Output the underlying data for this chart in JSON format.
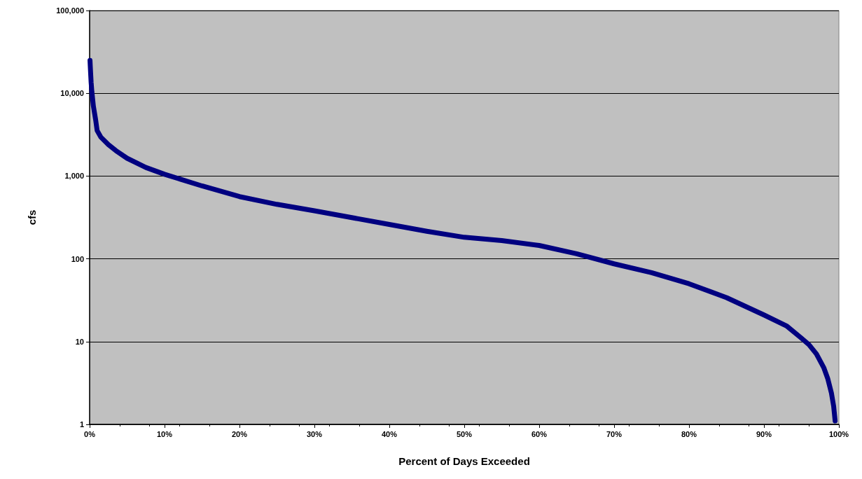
{
  "chart_data": {
    "type": "line",
    "xlabel": "Percent of Days Exceeded",
    "ylabel": "cfs",
    "x": [
      0.05,
      0.1,
      0.2,
      0.3,
      0.5,
      0.8,
      1,
      1.5,
      2.5,
      3.5,
      5,
      7.5,
      10,
      15,
      20,
      25,
      30,
      35,
      40,
      45,
      50,
      55,
      60,
      65,
      70,
      75,
      80,
      85,
      90,
      93,
      95,
      96,
      97,
      98,
      98.5,
      99,
      99.3,
      99.5
    ],
    "series": [
      {
        "color": "#000080",
        "values": [
          25000,
          20000,
          13500,
          10400,
          7000,
          4800,
          3550,
          2950,
          2400,
          2030,
          1640,
          1270,
          1050,
          760,
          565,
          455,
          380,
          315,
          260,
          215,
          182,
          166,
          145,
          115,
          87,
          68,
          50,
          34,
          21,
          15.5,
          11,
          9.2,
          7.1,
          4.8,
          3.6,
          2.4,
          1.66,
          1.1
        ]
      }
    ],
    "xlim": [
      0,
      100
    ],
    "xticks": [
      {
        "value": 0,
        "label": "0%"
      },
      {
        "value": 10,
        "label": "10%"
      },
      {
        "value": 20,
        "label": "20%"
      },
      {
        "value": 30,
        "label": "30%"
      },
      {
        "value": 40,
        "label": "40%"
      },
      {
        "value": 50,
        "label": "50%"
      },
      {
        "value": 60,
        "label": "60%"
      },
      {
        "value": 70,
        "label": "70%"
      },
      {
        "value": 80,
        "label": "80%"
      },
      {
        "value": 90,
        "label": "90%"
      },
      {
        "value": 100,
        "label": "100%"
      }
    ],
    "ylim": [
      1,
      100000
    ],
    "yticks": [
      1,
      10,
      100,
      {
        "value": 1000,
        "label": "1,000"
      },
      {
        "value": 10000,
        "label": "10,000"
      },
      {
        "value": 100000,
        "label": "100,000"
      }
    ],
    "log": "y",
    "grid": "y",
    "marker": "none",
    "line_style": "solid"
  }
}
